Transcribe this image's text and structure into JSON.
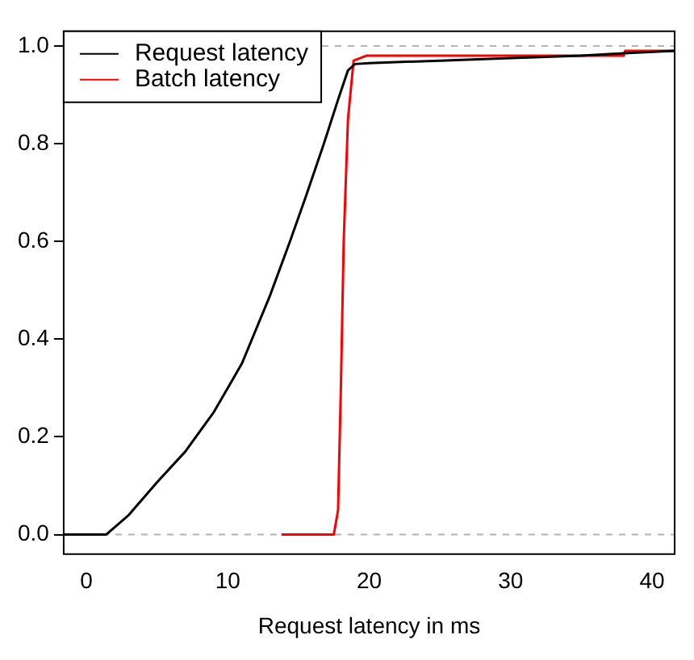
{
  "chart_data": {
    "type": "line",
    "xlabel": "Request latency in ms",
    "xlim": [
      -1.6,
      41.6
    ],
    "xticks": [
      0,
      10,
      20,
      30,
      40
    ],
    "ylim": [
      -0.04,
      1.03
    ],
    "yticks": [
      {
        "value": 0,
        "label": "0.0"
      },
      {
        "value": 0.2,
        "label": "0.2"
      },
      {
        "value": 0.4,
        "label": "0.4"
      },
      {
        "value": 0.6,
        "label": "0.6"
      },
      {
        "value": 0.8,
        "label": "0.8"
      },
      {
        "value": 1,
        "label": "1.0"
      }
    ],
    "legend": "top left",
    "grid": false,
    "marker": "none",
    "line_style": "solid",
    "ref_lines": [
      {
        "axis": "y",
        "value": 0,
        "color": "#b3b3b3",
        "line_style": "dashed"
      },
      {
        "axis": "y",
        "value": 1,
        "color": "#b3b3b3",
        "line_style": "dashed"
      }
    ],
    "series": [
      {
        "name": "Request latency",
        "color": "#000000",
        "x": [
          -1.6,
          1.4,
          3,
          5,
          7,
          9,
          10,
          11,
          12,
          13,
          14.4,
          15.5,
          16.8,
          17.8,
          18.5,
          19,
          20,
          25,
          30,
          35,
          38,
          41.6
        ],
        "values": [
          0,
          0,
          0.04,
          0.107,
          0.17,
          0.25,
          0.3,
          0.35,
          0.42,
          0.49,
          0.6,
          0.69,
          0.8,
          0.89,
          0.95,
          0.963,
          0.965,
          0.97,
          0.975,
          0.98,
          0.985,
          0.99
        ]
      },
      {
        "name": "Batch latency",
        "color": "#ff0000",
        "x": [
          13.8,
          17.5,
          17.8,
          18.0,
          18.2,
          18.5,
          18.9,
          19.8,
          38,
          38.1,
          41.6
        ],
        "values": [
          0,
          0,
          0.05,
          0.3,
          0.6,
          0.85,
          0.97,
          0.98,
          0.98,
          0.99,
          0.99
        ]
      }
    ]
  }
}
